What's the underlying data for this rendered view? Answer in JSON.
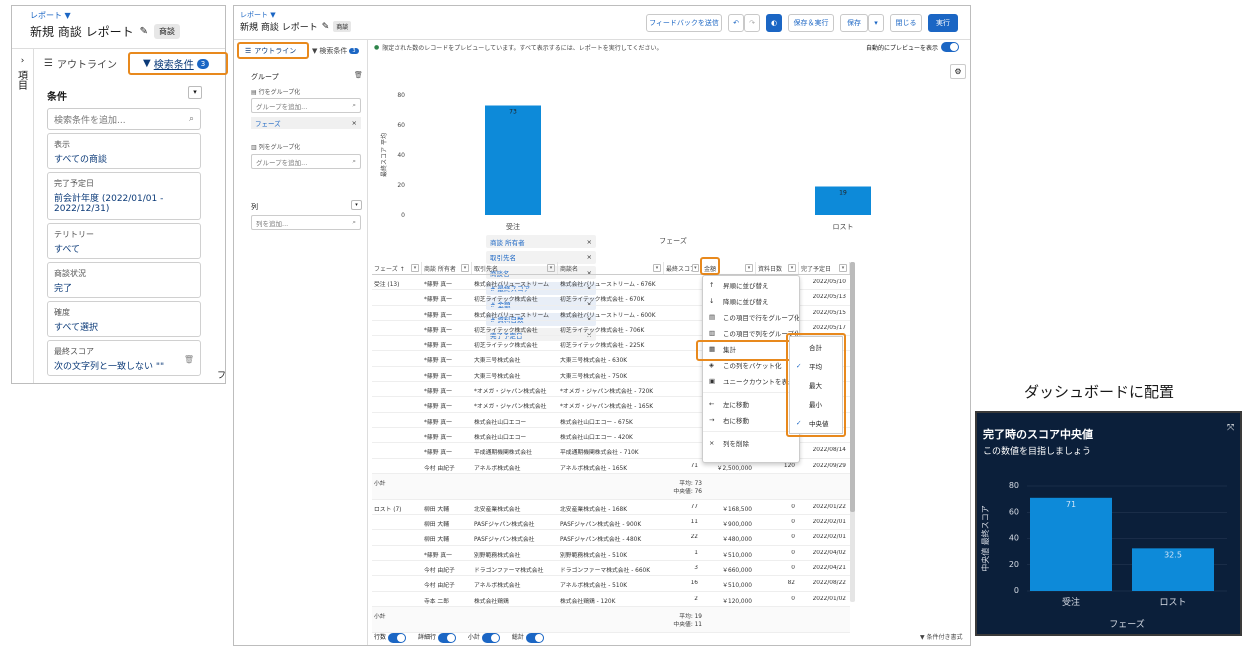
{
  "left_panel": {
    "breadcrumb": "レポート",
    "title": "新規 商談 レポート",
    "badge": "商談",
    "vertical_label": "項目",
    "tab_outline": "アウトライン",
    "tab_filters": "検索条件",
    "filter_count": "3",
    "section": "条件",
    "search_placeholder": "検索条件を追加...",
    "filters": [
      {
        "label": "表示",
        "value": "すべての商談"
      },
      {
        "label": "完了予定日",
        "value": "前会計年度 (2022/01/01 - 2022/12/31)"
      },
      {
        "label": "テリトリー",
        "value": "すべて"
      },
      {
        "label": "商談状況",
        "value": "完了"
      },
      {
        "label": "確度",
        "value": "すべて選択"
      },
      {
        "label": "最終スコア",
        "value": "次の文字列と一致しない \"\""
      }
    ],
    "edge_char": "フ"
  },
  "main": {
    "breadcrumb": "レポート",
    "title": "新規 商談 レポート",
    "badge": "商談",
    "buttons": {
      "feedback": "フィードバックを送信",
      "save_run": "保存＆実行",
      "save": "保存",
      "close": "閉じる",
      "run": "実行"
    },
    "tab_outline": "アウトライン",
    "tab_filters": "検索条件",
    "filter_count": "3",
    "preview_notice": "限定された数のレコードをプレビューしています。すべて表示するには、レポートを実行してください。",
    "auto_preview": "自動的にプレビューを表示",
    "groups_title": "グループ",
    "row_group_label": "行をグループ化",
    "group_placeholder": "グループを追加...",
    "row_group_chip": "フェーズ",
    "col_group_label": "列をグループ化",
    "col_group_placeholder": "グループを追加...",
    "columns_title": "列",
    "columns_placeholder": "列を追加...",
    "column_chips": [
      "商談 所有者",
      "取引先名",
      "商談名",
      "# 最終スコア",
      "# 金額",
      "# 資料日数",
      "完了予定日"
    ],
    "footer": {
      "rows": "行数",
      "detail": "詳細行",
      "subtotal": "小計",
      "total": "総計",
      "conditional": "条件付き書式"
    }
  },
  "chart_main": {
    "chart_data": {
      "type": "bar",
      "categories": [
        "受注",
        "ロスト"
      ],
      "values": [
        73,
        19
      ],
      "data_labels": [
        "73",
        "19"
      ],
      "ylabel": "最終スコア 平均",
      "xlabel": "フェーズ",
      "ylim": [
        0,
        80
      ],
      "yticks": [
        "80",
        "60",
        "40",
        "20",
        "0"
      ],
      "color": "#0d8ad9"
    }
  },
  "table": {
    "headers": [
      "フェーズ ↑",
      "商談 所有者",
      "取引先名",
      "商談名",
      "最終スコア",
      "金額",
      "資料日数",
      "完了予定日"
    ],
    "won_group": "受注 (13)",
    "won_rows": [
      [
        "*篠野 真一",
        "株式会社バリューストリーム",
        "株式会社バリューストリーム - 676K",
        "",
        "",
        "",
        "2022/05/10"
      ],
      [
        "*篠野 真一",
        "初芝ライテック株式会社",
        "初芝ライテック株式会社 - 670K",
        "",
        "",
        "",
        "2022/05/13"
      ],
      [
        "*篠野 真一",
        "株式会社バリューストリーム",
        "株式会社バリューストリーム - 600K",
        "",
        "",
        "",
        "2022/05/15"
      ],
      [
        "*篠野 真一",
        "初芝ライテック株式会社",
        "初芝ライテック株式会社 - 706K",
        "",
        "",
        "",
        "2022/05/17"
      ],
      [
        "*篠野 真一",
        "初芝ライテック株式会社",
        "初芝ライテック株式会社 - 225K",
        "",
        "",
        "",
        ""
      ],
      [
        "*篠野 真一",
        "大東三号株式会社",
        "大東三号株式会社 - 630K",
        "",
        "",
        "",
        ""
      ],
      [
        "*篠野 真一",
        "大東三号株式会社",
        "大東三号株式会社 - 750K",
        "",
        "",
        "",
        ""
      ],
      [
        "*篠野 真一",
        "*オメガ・ジャパン株式会社",
        "*オメガ・ジャパン株式会社 - 720K",
        "",
        "",
        "",
        ""
      ],
      [
        "*篠野 真一",
        "*オメガ・ジャパン株式会社",
        "*オメガ・ジャパン株式会社 - 165K",
        "",
        "",
        "",
        ""
      ],
      [
        "*篠野 真一",
        "株式会社山口エコー",
        "株式会社山口エコー - 675K",
        "",
        "",
        "",
        ""
      ],
      [
        "*篠野 真一",
        "株式会社山口エコー",
        "株式会社山口エコー - 420K",
        "",
        "",
        "",
        ""
      ],
      [
        "*篠野 真一",
        "平成通期機関株式会社",
        "平成通期機関株式会社 - 710K",
        "",
        "",
        "",
        "2022/08/14"
      ],
      [
        "今村 由紀子",
        "アネルボ株式会社",
        "アネルボ株式会社 - 165K",
        "71",
        "￥2,500,000",
        "120",
        "2022/09/29"
      ]
    ],
    "won_subtotal_label": "小計",
    "won_subtotal": [
      "平均: 73",
      "中央値: 76"
    ],
    "lost_group": "ロスト (7)",
    "lost_rows": [
      [
        "柳田 大輔",
        "北安産業株式会社",
        "北安産業株式会社 - 168K",
        "77",
        "￥168,500",
        "0",
        "2022/01/22"
      ],
      [
        "柳田 大輔",
        "PASFジャパン株式会社",
        "PASFジャパン株式会社 - 900K",
        "11",
        "￥900,000",
        "0",
        "2022/02/01"
      ],
      [
        "柳田 大輔",
        "PASFジャパン株式会社",
        "PASFジャパン株式会社 - 480K",
        "22",
        "￥480,000",
        "0",
        "2022/02/01"
      ],
      [
        "*篠野 真一",
        "別野範務株式会社",
        "別野範務株式会社 - 510K",
        "1",
        "￥510,000",
        "0",
        "2022/04/02"
      ],
      [
        "今村 由紀子",
        "ドラゴンファーマ株式会社",
        "ドラゴンファーマ株式会社 - 660K",
        "3",
        "￥660,000",
        "0",
        "2022/04/21"
      ],
      [
        "今村 由紀子",
        "アネルボ株式会社",
        "アネルボ株式会社 - 510K",
        "16",
        "￥510,000",
        "82",
        "2022/08/22"
      ],
      [
        "寺本 二郎",
        "株式会社鶏鶏",
        "株式会社鶏鶏 - 120K",
        "2",
        "￥120,000",
        "0",
        "2022/01/02"
      ]
    ],
    "lost_subtotal_label": "小計",
    "lost_subtotal": [
      "平均: 19",
      "中央値: 11"
    ]
  },
  "column_menu": {
    "items": [
      "昇順に並び替え",
      "降順に並び替え",
      "この項目で行をグループ化",
      "この項目で列をグループ化",
      "集計",
      "この列をバケット化",
      "ユニークカウントを表示",
      "左に移動",
      "右に移動",
      "列を削除"
    ],
    "icons": [
      "arrow-up-icon",
      "arrow-down-icon",
      "group-rows-icon",
      "group-cols-icon",
      "summary-icon",
      "bucket-icon",
      "unique-count-icon",
      "arrow-left-icon",
      "arrow-right-icon",
      "delete-icon"
    ]
  },
  "summary_menu": {
    "items": [
      {
        "label": "合計",
        "checked": false
      },
      {
        "label": "平均",
        "checked": true
      },
      {
        "label": "最大",
        "checked": false
      },
      {
        "label": "最小",
        "checked": false
      },
      {
        "label": "中央値",
        "checked": true
      }
    ]
  },
  "dashboard": {
    "heading": "ダッシュボードに配置",
    "title": "完了時のスコア中央値",
    "subtitle": "この数値を目指しましょう",
    "chart_data": {
      "type": "bar",
      "categories": [
        "受注",
        "ロスト"
      ],
      "values": [
        71,
        32.5
      ],
      "data_labels": [
        "71",
        "32.5"
      ],
      "ylabel": "中央値 最終スコア",
      "xlabel": "フェーズ",
      "ylim": [
        0,
        80
      ],
      "yticks": [
        "80",
        "60",
        "40",
        "20",
        "0"
      ],
      "color": "#0d8ad9",
      "background": "#0b1f3a"
    }
  }
}
